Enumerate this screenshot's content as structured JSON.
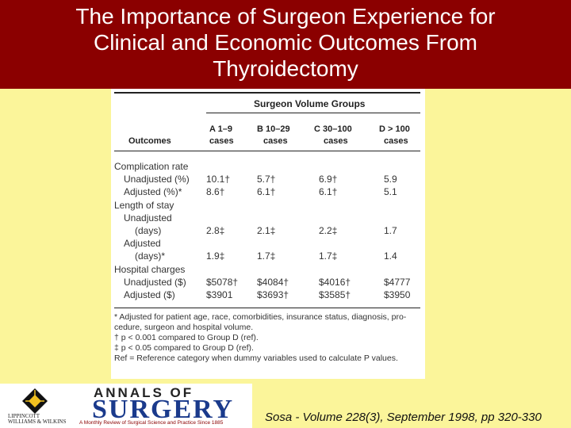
{
  "title": {
    "lines": [
      "The Importance of Surgeon Experience for",
      "Clinical and Economic Outcomes From",
      "Thyroidectomy"
    ]
  },
  "table": {
    "group_title": "Surgeon Volume Groups",
    "outcomes_label": "Outcomes",
    "columns": [
      {
        "line1": "A 1–9",
        "line2": "cases"
      },
      {
        "line1": "B 10–29",
        "line2": "cases"
      },
      {
        "line1": "C 30–100",
        "line2": "cases"
      },
      {
        "line1": "D > 100",
        "line2": "cases"
      }
    ],
    "rows": [
      {
        "label": "Complication rate",
        "indent": 0,
        "values": [
          "",
          "",
          "",
          ""
        ]
      },
      {
        "label": "Unadjusted  (%)",
        "indent": 1,
        "values": [
          "10.1†",
          "5.7†",
          "6.9†",
          "5.9"
        ]
      },
      {
        "label": "Adjusted  (%)*",
        "indent": 1,
        "values": [
          "8.6†",
          "6.1†",
          "6.1†",
          "5.1"
        ]
      },
      {
        "label": "Length of stay",
        "indent": 0,
        "values": [
          "",
          "",
          "",
          ""
        ]
      },
      {
        "label": "Unadjusted",
        "indent": 1,
        "values": [
          "",
          "",
          "",
          ""
        ]
      },
      {
        "label": "(days)",
        "indent": 2,
        "values": [
          "2.8‡",
          "2.1‡",
          "2.2‡",
          "1.7"
        ]
      },
      {
        "label": "Adjusted",
        "indent": 1,
        "values": [
          "",
          "",
          "",
          ""
        ]
      },
      {
        "label": "(days)*",
        "indent": 2,
        "values": [
          "1.9‡",
          "1.7‡",
          "1.7‡",
          "1.4"
        ]
      },
      {
        "label": "Hospital charges",
        "indent": 0,
        "values": [
          "",
          "",
          "",
          ""
        ]
      },
      {
        "label": "Unadjusted  ($)",
        "indent": 1,
        "values": [
          "$5078†",
          "$4084†",
          "$4016†",
          "$4777"
        ]
      },
      {
        "label": "Adjusted  ($)",
        "indent": 1,
        "values": [
          "$3901",
          "$3693†",
          "$3585†",
          "$3950"
        ]
      }
    ],
    "footnotes": [
      "* Adjusted for patient age, race, comorbidities, insurance status, diagnosis, pro-",
      "  cedure, surgeon and hospital volume.",
      "† p < 0.001 compared to Group D (ref).",
      "‡ p < 0.05 compared to Group D (ref).",
      "Ref = Reference category when dummy variables used to calculate P values."
    ]
  },
  "logos": {
    "publisher_line1": "LIPPINCOTT",
    "publisher_line2": "WILLIAMS & WILKINS",
    "journal_top": "ANNALS OF",
    "journal_name": "SURGERY",
    "journal_tagline": "A Monthly Review of Surgical Science and Practice Since 1885"
  },
  "citation": "Sosa - Volume 228(3), September 1998, pp 320-330",
  "colors": {
    "title_bg": "#8b0000",
    "page_bg": "#fbf59a",
    "journal_blue": "#1a3a8c"
  }
}
